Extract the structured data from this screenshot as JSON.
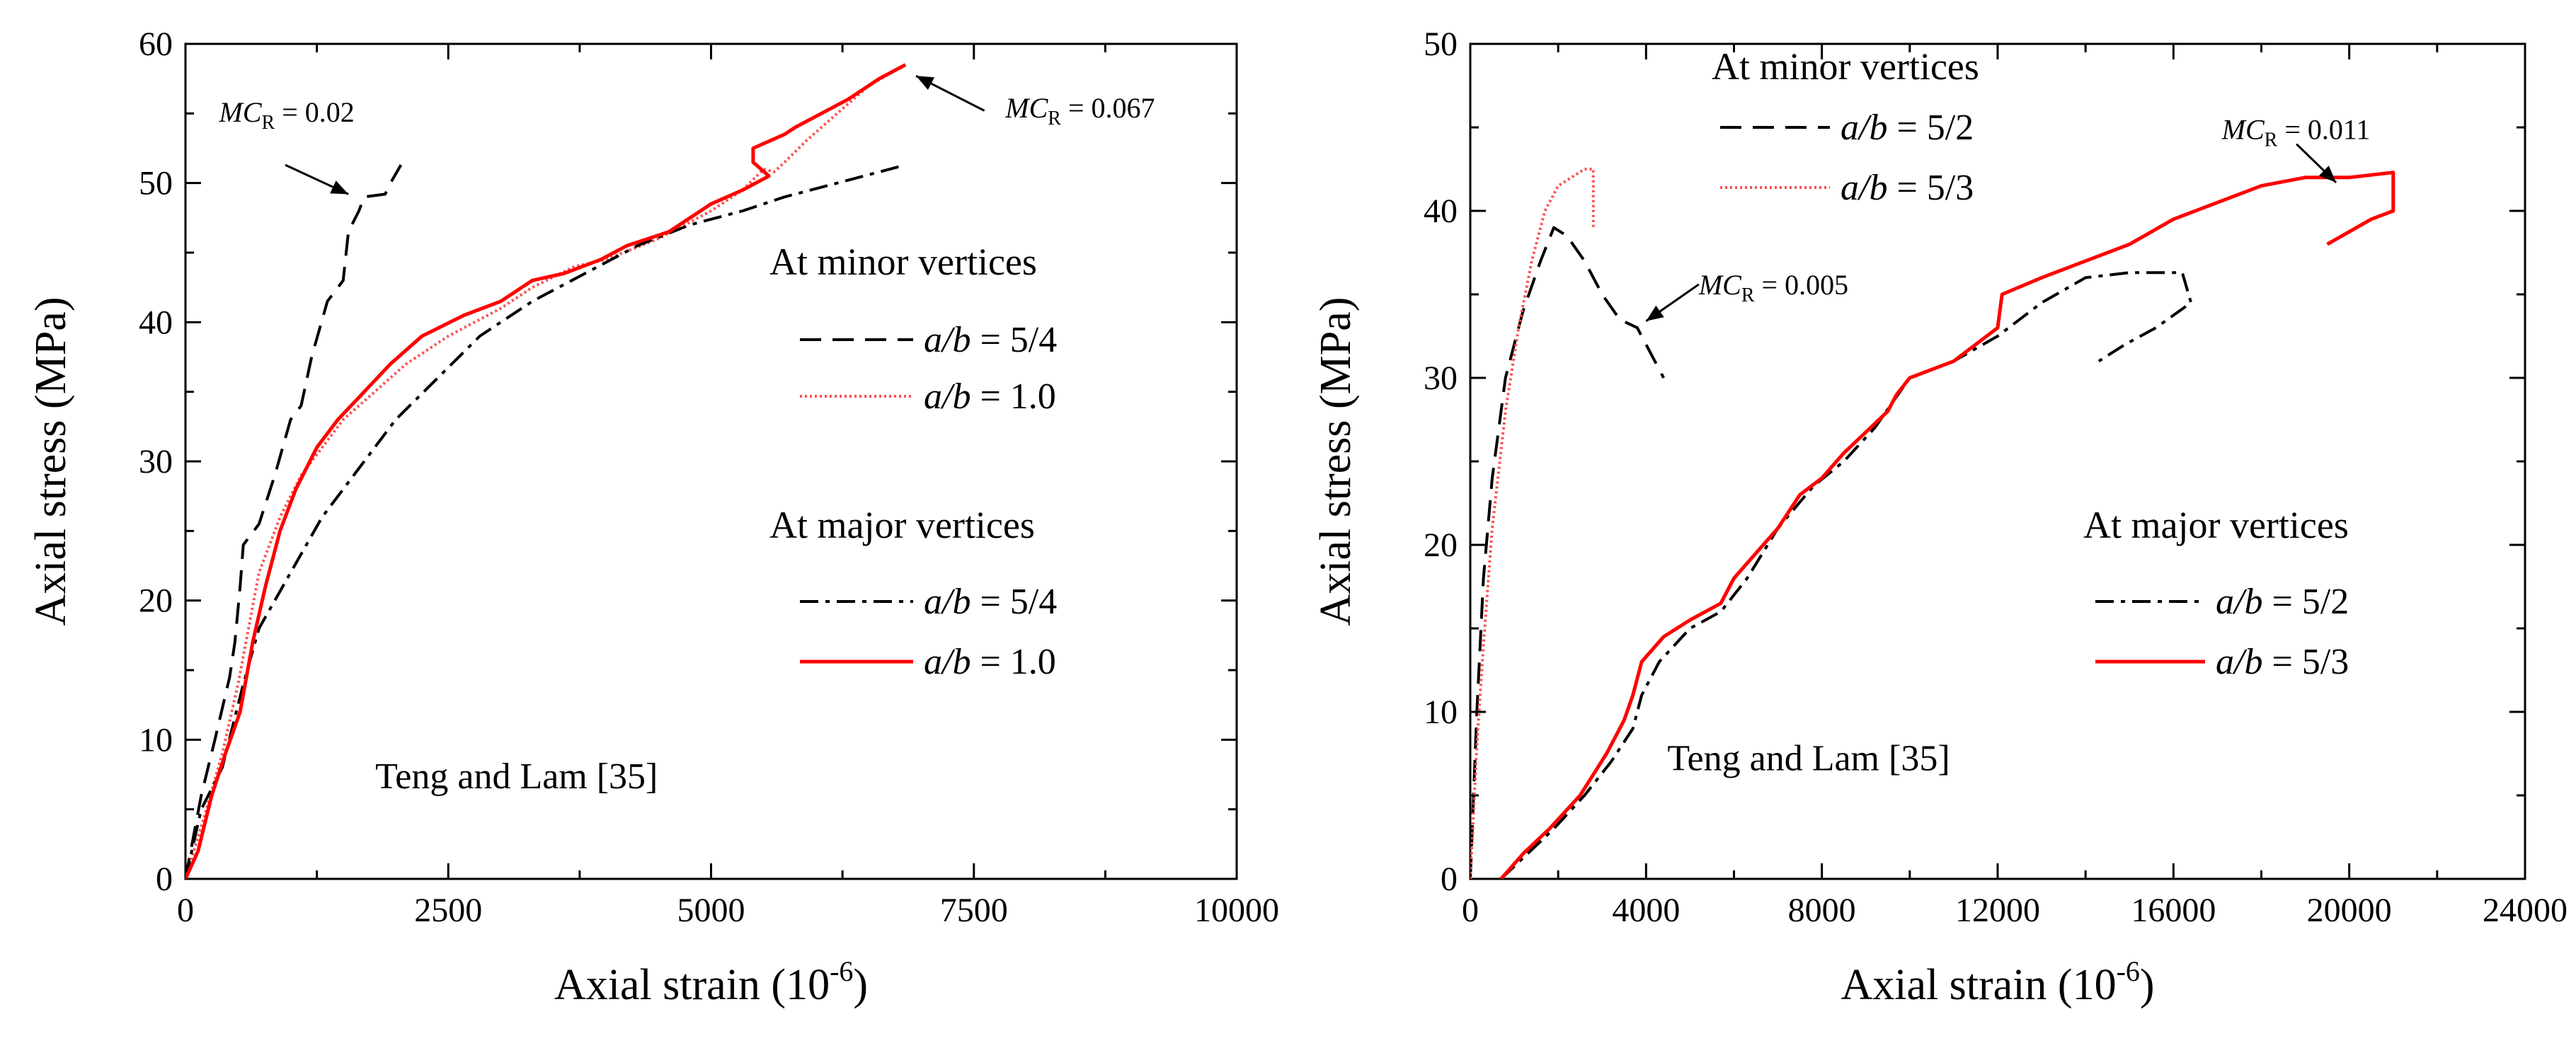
{
  "chart_data": [
    {
      "type": "line",
      "xlabel": "Axial strain (10",
      "xlabel_sup": "-6",
      "xlabel_close": ")",
      "ylabel": "Axial stress (MPa)",
      "xlim": [
        0,
        10000
      ],
      "ylim": [
        0,
        60
      ],
      "xticks": [
        0,
        2500,
        5000,
        7500,
        10000
      ],
      "yticks": [
        0,
        10,
        20,
        30,
        40,
        50,
        60
      ],
      "grid": false,
      "legend": {
        "groups": [
          {
            "title": "At minor vertices",
            "entries": [
              {
                "prefix": "a/b",
                "label": " = 5/4",
                "series": 0
              },
              {
                "prefix": "a/b",
                "label": " = 1.0",
                "series": 1
              }
            ]
          },
          {
            "title": "At major vertices",
            "entries": [
              {
                "prefix": "a/b",
                "label": " = 5/4",
                "series": 2
              },
              {
                "prefix": "a/b",
                "label": " = 1.0",
                "series": 3
              }
            ]
          }
        ]
      },
      "annotations": [
        {
          "text_main": "MC",
          "text_sub": "R",
          "text_value": " = 0.02",
          "text_at": [
            320,
            54.4
          ],
          "arrow_from": [
            950,
            51.3
          ],
          "arrow_to": [
            1550,
            49.2
          ]
        },
        {
          "text_main": "MC",
          "text_sub": "R",
          "text_value": " = 0.067",
          "text_at": [
            7800,
            54.7
          ],
          "arrow_from": [
            7600,
            55.2
          ],
          "arrow_to": [
            6950,
            57.7
          ]
        }
      ],
      "source_note": "Teng and Lam [35]",
      "source_at": [
        3150,
        6.5
      ],
      "series": [
        {
          "name": "minor a/b = 5/4",
          "style": "dashed",
          "color": "#000000",
          "points": [
            [
              0,
              0
            ],
            [
              150,
              6
            ],
            [
              280,
              10
            ],
            [
              420,
              14.5
            ],
            [
              470,
              17
            ],
            [
              520,
              21
            ],
            [
              550,
              24
            ],
            [
              700,
              25.5
            ],
            [
              850,
              29
            ],
            [
              1000,
              33
            ],
            [
              1100,
              34
            ],
            [
              1200,
              37.5
            ],
            [
              1350,
              41.5
            ],
            [
              1500,
              43
            ],
            [
              1550,
              46.5
            ],
            [
              1650,
              48
            ],
            [
              1700,
              49
            ],
            [
              1900,
              49.2
            ],
            [
              1950,
              50
            ],
            [
              2050,
              51.3
            ]
          ]
        },
        {
          "name": "minor a/b = 1.0",
          "style": "dotted",
          "color": "#ff4d4d",
          "points": [
            [
              0,
              0
            ],
            [
              200,
              5
            ],
            [
              350,
              9
            ],
            [
              500,
              14
            ],
            [
              600,
              18
            ],
            [
              700,
              22
            ],
            [
              900,
              26
            ],
            [
              1100,
              29
            ],
            [
              1300,
              31
            ],
            [
              1500,
              33
            ],
            [
              1800,
              35
            ],
            [
              2100,
              37
            ],
            [
              2500,
              39
            ],
            [
              3000,
              41
            ],
            [
              3300,
              42.5
            ],
            [
              3700,
              44
            ],
            [
              4000,
              44.5
            ],
            [
              4500,
              46
            ],
            [
              5000,
              48
            ],
            [
              5300,
              49.5
            ],
            [
              5500,
              51
            ],
            [
              5600,
              50.8
            ],
            [
              5700,
              51.5
            ],
            [
              5900,
              53
            ],
            [
              6200,
              55
            ],
            [
              6500,
              57
            ],
            [
              6850,
              58.5
            ]
          ]
        },
        {
          "name": "major a/b = 5/4",
          "style": "dashdot",
          "color": "#000000",
          "points": [
            [
              0,
              0
            ],
            [
              150,
              5
            ],
            [
              350,
              8
            ],
            [
              550,
              14
            ],
            [
              700,
              18
            ],
            [
              1000,
              22
            ],
            [
              1300,
              26
            ],
            [
              1600,
              29
            ],
            [
              2000,
              33
            ],
            [
              2400,
              36
            ],
            [
              2800,
              39
            ],
            [
              3300,
              41.5
            ],
            [
              3800,
              43.5
            ],
            [
              4300,
              45.5
            ],
            [
              4800,
              47
            ],
            [
              5300,
              48
            ],
            [
              5700,
              49
            ],
            [
              6200,
              50
            ],
            [
              6800,
              51.2
            ]
          ]
        },
        {
          "name": "major a/b = 1.0",
          "style": "solid",
          "color": "#ff0000",
          "points": [
            [
              0,
              0
            ],
            [
              120,
              2
            ],
            [
              250,
              6
            ],
            [
              380,
              9
            ],
            [
              520,
              12
            ],
            [
              640,
              17
            ],
            [
              760,
              21
            ],
            [
              900,
              25
            ],
            [
              1050,
              28
            ],
            [
              1250,
              31
            ],
            [
              1450,
              33
            ],
            [
              1700,
              35
            ],
            [
              1950,
              37
            ],
            [
              2250,
              39
            ],
            [
              2650,
              40.5
            ],
            [
              3000,
              41.5
            ],
            [
              3300,
              43
            ],
            [
              3600,
              43.5
            ],
            [
              3950,
              44.5
            ],
            [
              4200,
              45.5
            ],
            [
              4600,
              46.5
            ],
            [
              5000,
              48.5
            ],
            [
              5300,
              49.5
            ],
            [
              5550,
              50.5
            ],
            [
              5400,
              51.5
            ],
            [
              5400,
              52.5
            ],
            [
              5700,
              53.5
            ],
            [
              5800,
              54
            ],
            [
              6050,
              55
            ],
            [
              6300,
              56
            ],
            [
              6600,
              57.5
            ],
            [
              6850,
              58.5
            ]
          ]
        }
      ]
    },
    {
      "type": "line",
      "xlabel": "Axial strain (10",
      "xlabel_sup": "-6",
      "xlabel_close": ")",
      "ylabel": "Axial stress (MPa)",
      "xlim": [
        0,
        24000
      ],
      "ylim": [
        0,
        50
      ],
      "xticks": [
        0,
        4000,
        8000,
        12000,
        16000,
        20000,
        24000
      ],
      "yticks": [
        0,
        10,
        20,
        30,
        40,
        50
      ],
      "grid": false,
      "legend": {
        "groups": [
          {
            "title": "At minor vertices",
            "entries": [
              {
                "prefix": "a/b",
                "label": " = 5/2",
                "series": 0
              },
              {
                "prefix": "a/b",
                "label": " = 5/3",
                "series": 1
              }
            ]
          },
          {
            "title": "At major vertices",
            "entries": [
              {
                "prefix": "a/b",
                "label": " = 5/2",
                "series": 2
              },
              {
                "prefix": "a/b",
                "label": " = 5/3",
                "series": 3
              }
            ]
          }
        ]
      },
      "annotations": [
        {
          "text_main": "MC",
          "text_sub": "R",
          "text_value": " = 0.011",
          "text_at": [
            17100,
            44.3
          ],
          "arrow_from": [
            18800,
            44.0
          ],
          "arrow_to": [
            19700,
            41.7
          ]
        },
        {
          "text_main": "MC",
          "text_sub": "R",
          "text_value": " = 0.005",
          "text_at": [
            5200,
            35.0
          ],
          "arrow_from": [
            5200,
            35.6
          ],
          "arrow_to": [
            4000,
            33.4
          ]
        }
      ],
      "source_note": "Teng and Lam [35]",
      "source_at": [
        7700,
        6.5
      ],
      "series": [
        {
          "name": "minor a/b = 5/2",
          "style": "dashed",
          "color": "#000000",
          "points": [
            [
              0,
              0
            ],
            [
              150,
              10
            ],
            [
              300,
              18
            ],
            [
              500,
              24
            ],
            [
              800,
              30
            ],
            [
              1200,
              34
            ],
            [
              1600,
              37
            ],
            [
              1900,
              39
            ],
            [
              2200,
              38.5
            ],
            [
              2600,
              37
            ],
            [
              3000,
              35
            ],
            [
              3400,
              33.5
            ],
            [
              3800,
              33
            ],
            [
              4100,
              31.5
            ],
            [
              4400,
              30
            ]
          ]
        },
        {
          "name": "minor a/b = 5/3",
          "style": "dotted",
          "color": "#ff4d4d",
          "points": [
            [
              0,
              0
            ],
            [
              150,
              8
            ],
            [
              300,
              14
            ],
            [
              500,
              21
            ],
            [
              800,
              28
            ],
            [
              1100,
              33
            ],
            [
              1400,
              37
            ],
            [
              1700,
              40
            ],
            [
              2000,
              41.5
            ],
            [
              2300,
              42
            ],
            [
              2600,
              42.5
            ],
            [
              2800,
              42.5
            ],
            [
              2800,
              39
            ]
          ]
        },
        {
          "name": "major a/b = 5/2",
          "style": "dashdot",
          "color": "#000000",
          "points": [
            [
              700,
              0
            ],
            [
              1300,
              1.5
            ],
            [
              1900,
              3
            ],
            [
              2600,
              5
            ],
            [
              3200,
              7
            ],
            [
              3700,
              9
            ],
            [
              3900,
              11
            ],
            [
              4300,
              13
            ],
            [
              5000,
              15
            ],
            [
              5700,
              16
            ],
            [
              6300,
              18
            ],
            [
              7000,
              21
            ],
            [
              7800,
              23.5
            ],
            [
              8500,
              25
            ],
            [
              9200,
              27
            ],
            [
              10000,
              30
            ],
            [
              11000,
              31
            ],
            [
              12000,
              32.5
            ],
            [
              13000,
              34.5
            ],
            [
              14000,
              36
            ],
            [
              15000,
              36.3
            ],
            [
              16200,
              36.3
            ],
            [
              16400,
              34.5
            ],
            [
              15600,
              33
            ],
            [
              14900,
              32
            ],
            [
              14300,
              31
            ]
          ]
        },
        {
          "name": "major a/b = 5/3",
          "style": "solid",
          "color": "#ff0000",
          "points": [
            [
              700,
              0
            ],
            [
              1200,
              1.5
            ],
            [
              1800,
              3
            ],
            [
              2500,
              5
            ],
            [
              3100,
              7.5
            ],
            [
              3500,
              9.5
            ],
            [
              3700,
              11
            ],
            [
              3900,
              13
            ],
            [
              4400,
              14.5
            ],
            [
              5000,
              15.5
            ],
            [
              5700,
              16.5
            ],
            [
              6000,
              18
            ],
            [
              6500,
              19.5
            ],
            [
              7000,
              21
            ],
            [
              7500,
              23
            ],
            [
              8000,
              24
            ],
            [
              8500,
              25.5
            ],
            [
              9100,
              27
            ],
            [
              9500,
              28
            ],
            [
              9700,
              29
            ],
            [
              10000,
              30
            ],
            [
              11000,
              31
            ],
            [
              12000,
              33
            ],
            [
              12100,
              35
            ],
            [
              13000,
              36
            ],
            [
              14000,
              37
            ],
            [
              15000,
              38
            ],
            [
              16000,
              39.5
            ],
            [
              17000,
              40.5
            ],
            [
              18000,
              41.5
            ],
            [
              19000,
              42
            ],
            [
              20000,
              42
            ],
            [
              21000,
              42.3
            ],
            [
              21000,
              40
            ],
            [
              20500,
              39.5
            ],
            [
              19500,
              38
            ]
          ]
        }
      ]
    }
  ]
}
